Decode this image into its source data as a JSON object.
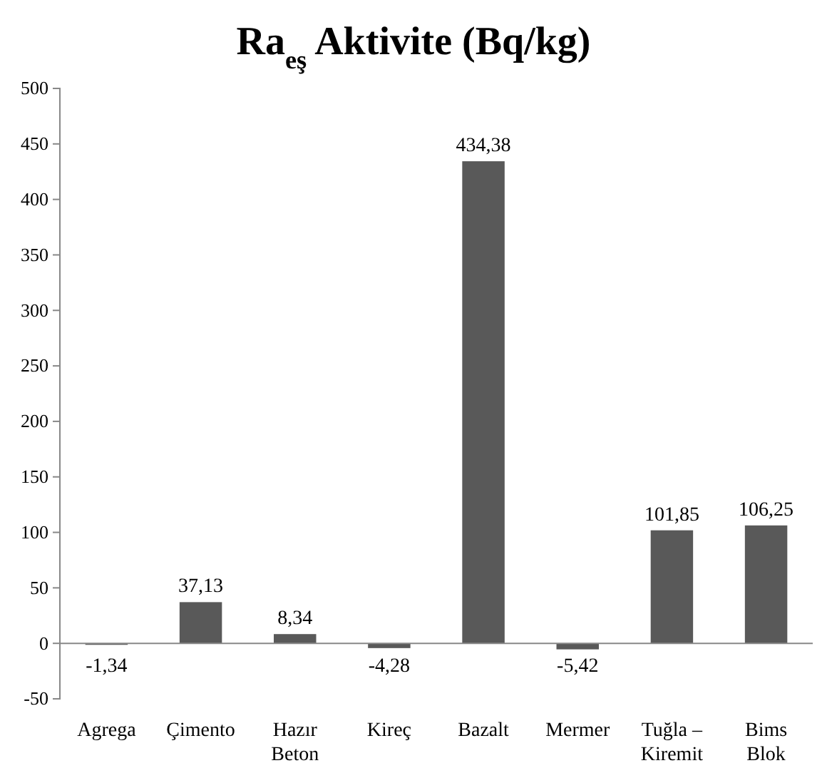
{
  "chart_data": {
    "type": "bar",
    "title": "Ra$_{eş}$ Aktivite (Bq/kg)",
    "categories": [
      "Agrega",
      "Çimento",
      "Hazır Beton",
      "Kireç",
      "Bazalt",
      "Mermer",
      "Tuğla – Kiremit",
      "Bims Blok"
    ],
    "values": [
      -1.34,
      37.13,
      8.34,
      -4.28,
      434.38,
      -5.42,
      101.85,
      106.25
    ],
    "value_labels": [
      "-1,34",
      "37,13",
      "8,34",
      "-4,28",
      "434,38",
      "-5,42",
      "101,85",
      "106,25"
    ],
    "color": "#595959",
    "ylim": [
      -50,
      500
    ],
    "yticks": [
      -50,
      0,
      50,
      100,
      150,
      200,
      250,
      300,
      350,
      400,
      450,
      500
    ]
  }
}
